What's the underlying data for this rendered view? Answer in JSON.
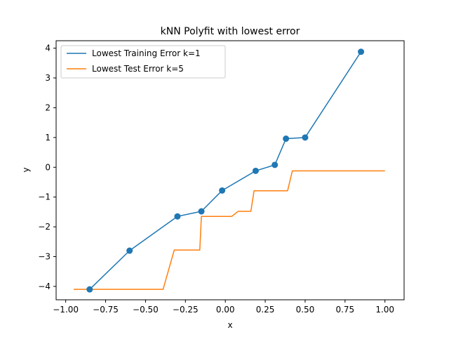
{
  "chart_data": {
    "type": "line",
    "title": "kNN Polyfit with lowest error",
    "xlabel": "x",
    "ylabel": "y",
    "xlim": [
      -1.06,
      1.12
    ],
    "ylim": [
      -4.45,
      4.25
    ],
    "x_ticks": [
      -1.0,
      -0.75,
      -0.5,
      -0.25,
      0.0,
      0.25,
      0.5,
      0.75,
      1.0
    ],
    "x_tick_labels": [
      "−1.00",
      "−0.75",
      "−0.50",
      "−0.25",
      "0.00",
      "0.25",
      "0.50",
      "0.75",
      "1.00"
    ],
    "y_ticks": [
      -4,
      -3,
      -2,
      -1,
      0,
      1,
      2,
      3,
      4
    ],
    "y_tick_labels": [
      "−4",
      "−3",
      "−2",
      "−1",
      "0",
      "1",
      "2",
      "3",
      "4"
    ],
    "grid": false,
    "legend_position": "top-left",
    "series": [
      {
        "name": "Lowest Training Error k=1",
        "color": "#1f77b4",
        "marker": "circle",
        "x": [
          -0.85,
          -0.6,
          -0.3,
          -0.15,
          -0.02,
          0.19,
          0.31,
          0.38,
          0.5,
          0.85
        ],
        "y": [
          -4.1,
          -2.8,
          -1.65,
          -1.48,
          -0.78,
          -0.12,
          0.08,
          0.96,
          1.0,
          3.88
        ]
      },
      {
        "name": "Lowest Test Error k=5",
        "color": "#ff7f0e",
        "marker": "none",
        "x": [
          -0.95,
          -0.39,
          -0.32,
          -0.16,
          -0.15,
          0.04,
          0.08,
          0.16,
          0.18,
          0.39,
          0.42,
          1.0
        ],
        "y": [
          -4.1,
          -4.1,
          -2.78,
          -2.78,
          -1.65,
          -1.65,
          -1.48,
          -1.48,
          -0.79,
          -0.79,
          -0.12,
          -0.12
        ]
      }
    ]
  }
}
